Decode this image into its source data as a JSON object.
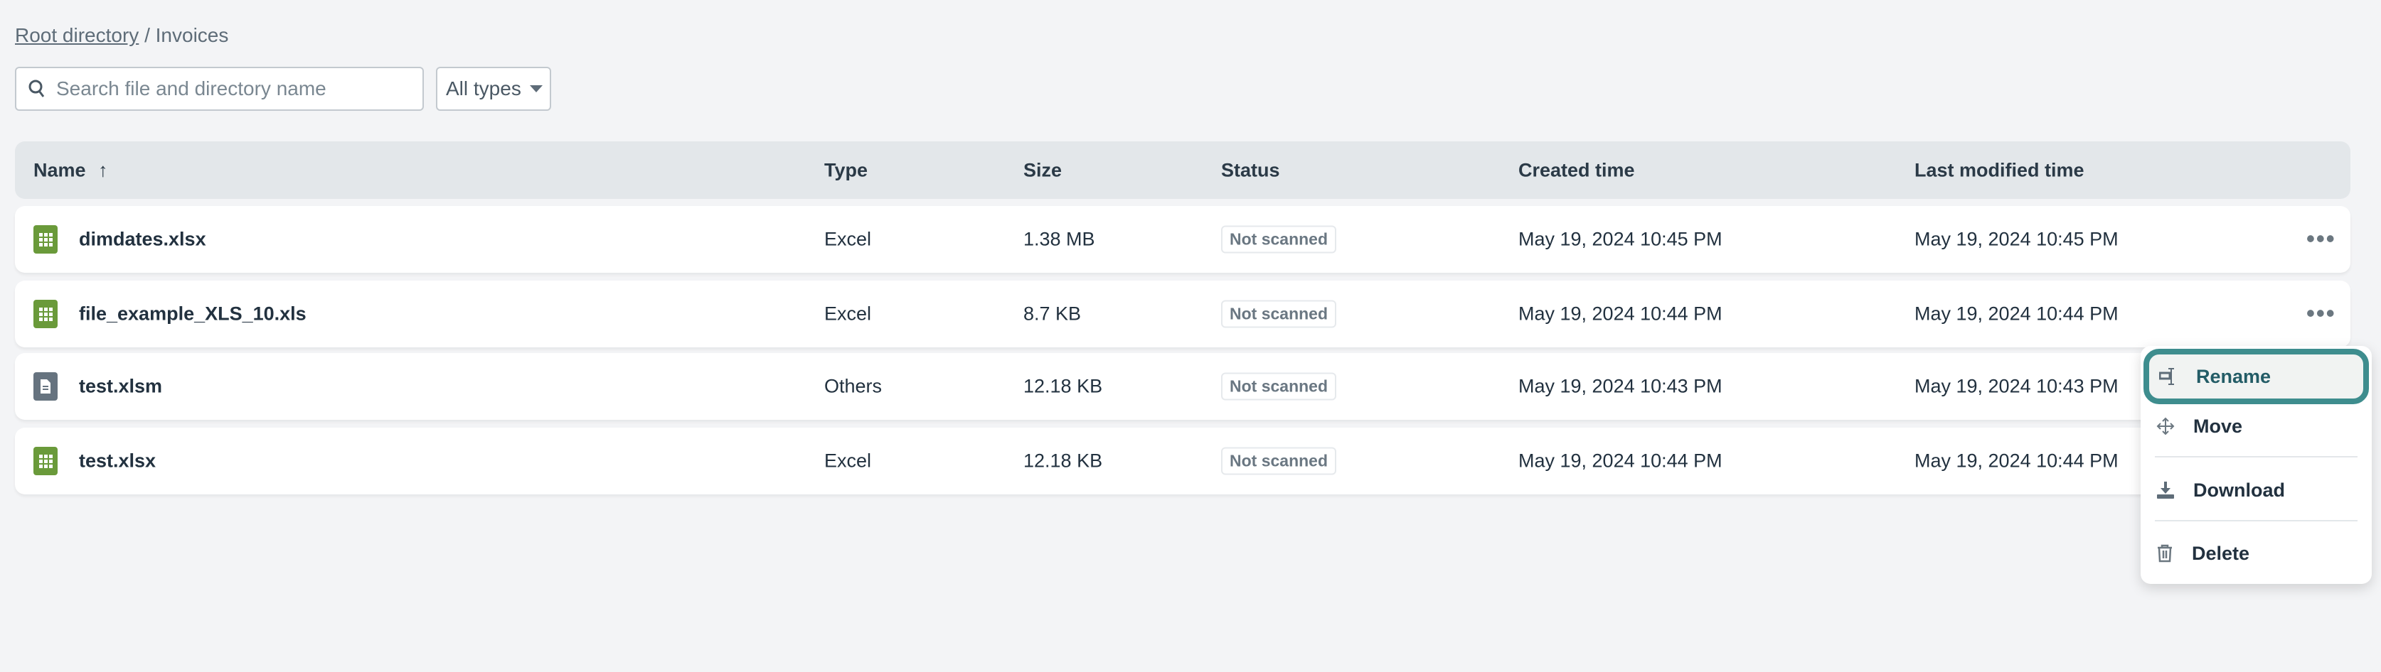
{
  "breadcrumb": {
    "root": "Root directory",
    "separator": "/",
    "current": "Invoices"
  },
  "search": {
    "placeholder": "Search file and directory name",
    "value": ""
  },
  "type_filter": {
    "selected": "All types"
  },
  "table": {
    "columns": [
      "Name",
      "Type",
      "Size",
      "Status",
      "Created time",
      "Last modified time"
    ],
    "sort": {
      "column": "Name",
      "direction": "ascending"
    },
    "rows": [
      {
        "name": "dimdates.xlsx",
        "icon": "excel-icon",
        "type": "Excel",
        "size": "1.38 MB",
        "status": "Not scanned",
        "created": "May 19, 2024 10:45 PM",
        "modified": "May 19, 2024 10:45 PM"
      },
      {
        "name": "file_example_XLS_10.xls",
        "icon": "excel-icon",
        "type": "Excel",
        "size": "8.7 KB",
        "status": "Not scanned",
        "created": "May 19, 2024 10:44 PM",
        "modified": "May 19, 2024 10:44 PM"
      },
      {
        "name": "test.xlsm",
        "icon": "document-icon",
        "type": "Others",
        "size": "12.18 KB",
        "status": "Not scanned",
        "created": "May 19, 2024 10:43 PM",
        "modified": "May 19, 2024 10:43 PM"
      },
      {
        "name": "test.xlsx",
        "icon": "excel-icon",
        "type": "Excel",
        "size": "12.18 KB",
        "status": "Not scanned",
        "created": "May 19, 2024 10:44 PM",
        "modified": "May 19, 2024 10:44 PM"
      }
    ]
  },
  "context_menu": {
    "items": [
      "Rename",
      "Move",
      "Download",
      "Delete"
    ],
    "highlighted": "Rename"
  },
  "colors": {
    "excel": "#6a9a3a",
    "other": "#66737f",
    "accent": "#3e8d8e"
  }
}
